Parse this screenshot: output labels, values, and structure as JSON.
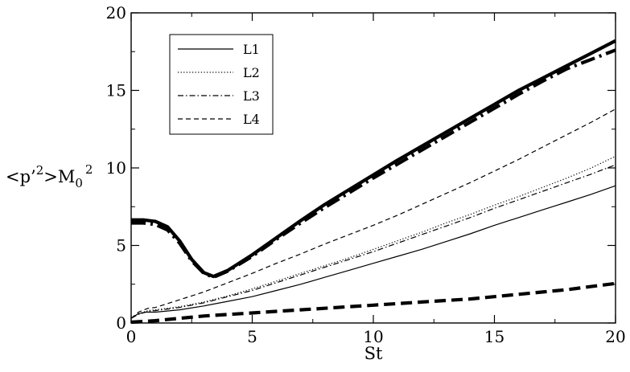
{
  "chart_data": {
    "type": "line",
    "xlabel": "St",
    "ylabel_parts": {
      "main": "<p’",
      "sup1": "2",
      "mid": ">M",
      "sub": "0",
      "sup2": "2"
    },
    "xlim": [
      0,
      20
    ],
    "ylim": [
      0,
      20
    ],
    "xticks": [
      0,
      5,
      10,
      15,
      20
    ],
    "yticks": [
      0,
      5,
      10,
      15,
      20
    ],
    "grid": false,
    "legend_position": "top-left",
    "legend": [
      {
        "label": "L1",
        "dash": "solid"
      },
      {
        "label": "L2",
        "dash": "dotted"
      },
      {
        "label": "L3",
        "dash": "dashdot"
      },
      {
        "label": "L4",
        "dash": "dashed"
      }
    ],
    "series": [
      {
        "style": "L1",
        "weight": "thin",
        "x": [
          0,
          0.3,
          0.6,
          1,
          2,
          3,
          4,
          5,
          6,
          7,
          8,
          9,
          10,
          11,
          12,
          13,
          14,
          15,
          16,
          17,
          18,
          19,
          20
        ],
        "y": [
          0.3,
          0.6,
          0.7,
          0.7,
          0.85,
          1.1,
          1.4,
          1.7,
          2.1,
          2.5,
          2.95,
          3.4,
          3.85,
          4.3,
          4.75,
          5.25,
          5.75,
          6.3,
          6.8,
          7.3,
          7.8,
          8.3,
          8.85
        ]
      },
      {
        "style": "L2",
        "weight": "thin",
        "x": [
          0,
          0.3,
          0.7,
          1,
          2,
          3,
          4,
          5,
          6,
          7,
          8,
          9,
          10,
          11,
          12,
          13,
          14,
          15,
          16,
          17,
          18,
          19,
          20
        ],
        "y": [
          0.3,
          0.6,
          0.8,
          0.85,
          1.05,
          1.35,
          1.75,
          2.2,
          2.7,
          3.2,
          3.7,
          4.2,
          4.75,
          5.3,
          5.85,
          6.45,
          7.0,
          7.6,
          8.15,
          8.75,
          9.35,
          10.0,
          10.75
        ]
      },
      {
        "style": "L3",
        "weight": "thin",
        "x": [
          0,
          0.3,
          0.7,
          1,
          2,
          3,
          4,
          5,
          6,
          7,
          8,
          9,
          10,
          11,
          12,
          13,
          14,
          15,
          16,
          17,
          18,
          19,
          20
        ],
        "y": [
          0.3,
          0.55,
          0.75,
          0.8,
          1.0,
          1.3,
          1.7,
          2.1,
          2.6,
          3.1,
          3.6,
          4.1,
          4.6,
          5.15,
          5.7,
          6.25,
          6.8,
          7.4,
          7.95,
          8.5,
          9.05,
          9.6,
          10.2
        ]
      },
      {
        "style": "L4",
        "weight": "thin",
        "x": [
          0,
          0.3,
          0.7,
          1,
          2,
          3,
          4,
          5,
          6,
          7,
          8,
          9,
          10,
          11,
          12,
          13,
          14,
          15,
          16,
          17,
          18,
          19,
          20
        ],
        "y": [
          0.3,
          0.7,
          0.95,
          1.0,
          1.5,
          2.0,
          2.6,
          3.2,
          3.85,
          4.45,
          5.1,
          5.7,
          6.3,
          6.95,
          7.65,
          8.35,
          9.05,
          9.8,
          10.55,
          11.35,
          12.15,
          12.95,
          13.8
        ]
      },
      {
        "style": "L1",
        "weight": "thick",
        "x": [
          0,
          0.5,
          1,
          1.5,
          2,
          2.5,
          3,
          3.4,
          4,
          5,
          6,
          7,
          8,
          9,
          10,
          11,
          12,
          13,
          14,
          15,
          16,
          17,
          18,
          19,
          20
        ],
        "y": [
          6.65,
          6.65,
          6.55,
          6.2,
          5.3,
          4.1,
          3.25,
          3.0,
          3.4,
          4.4,
          5.5,
          6.6,
          7.65,
          8.6,
          9.55,
          10.5,
          11.4,
          12.3,
          13.2,
          14.1,
          15.0,
          15.8,
          16.6,
          17.4,
          18.2
        ]
      },
      {
        "style": "L3",
        "weight": "thick",
        "x": [
          0,
          0.5,
          1,
          1.5,
          2,
          2.5,
          3,
          3.4,
          4,
          5,
          6,
          7,
          8,
          9,
          10,
          11,
          12,
          13,
          14,
          15,
          16,
          17,
          18,
          19,
          20
        ],
        "y": [
          6.45,
          6.45,
          6.35,
          6.0,
          5.15,
          4.0,
          3.2,
          2.95,
          3.35,
          4.3,
          5.4,
          6.45,
          7.45,
          8.4,
          9.35,
          10.25,
          11.15,
          12.05,
          12.95,
          13.85,
          14.75,
          15.6,
          16.4,
          17.0,
          17.6
        ]
      },
      {
        "style": "L4",
        "weight": "thick",
        "x": [
          0,
          1,
          2,
          3,
          4,
          5,
          6,
          7,
          8,
          9,
          10,
          11,
          12,
          13,
          14,
          15,
          16,
          17,
          18,
          19,
          20
        ],
        "y": [
          0.05,
          0.15,
          0.3,
          0.45,
          0.55,
          0.65,
          0.75,
          0.85,
          0.95,
          1.05,
          1.15,
          1.25,
          1.35,
          1.45,
          1.55,
          1.7,
          1.85,
          2.0,
          2.15,
          2.35,
          2.55
        ]
      }
    ]
  }
}
